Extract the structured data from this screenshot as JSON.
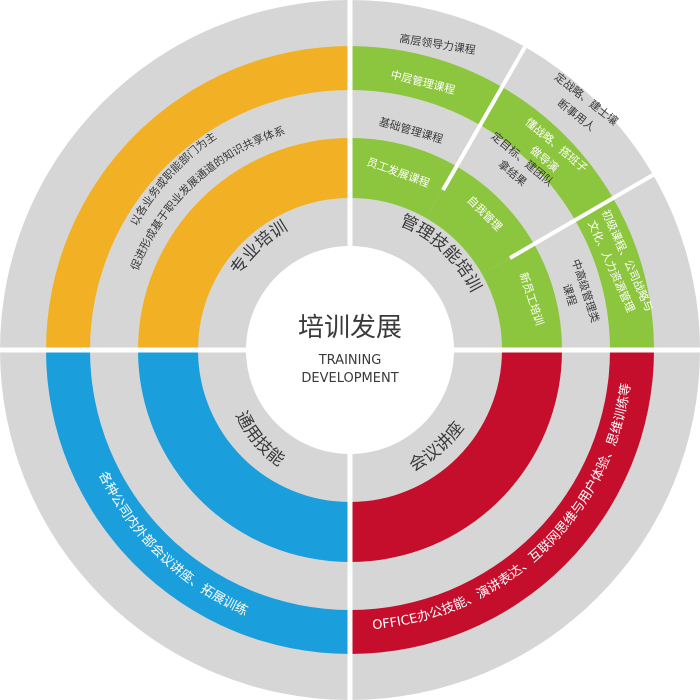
{
  "center": {
    "title": "培训发展",
    "subtitle_line1": "TRAINING",
    "subtitle_line2": "DEVELOPMENT"
  },
  "colors": {
    "orange": "#F2B125",
    "green": "#8CC63E",
    "red": "#C40E2C",
    "blue": "#1A9EDC",
    "gray": "#D6D6D6",
    "text_dark": "#3A3A3A"
  },
  "quadrants": {
    "professional": {
      "name": "专业培训",
      "outer_text": "以各业务或职能部门为主",
      "inner_text": "促进形成基于职业发展通道的知识共享体系"
    },
    "management": {
      "name": "管理技能培训",
      "levels": {
        "senior_course": "高层领导力课程",
        "middle_course": "中层管理课程",
        "basic_course": "基础管理课程",
        "staff_course": "员工发展课程",
        "self_mgmt": "自我管理",
        "new_staff": "新员工培训"
      },
      "outer_notes": {
        "strategy_line1": "定战略、建士壤",
        "strategy_line2": "断事用人",
        "team_line1": "懂战略、搭班子",
        "team_line2": "做导演",
        "goal_line1": "定目标、建团队",
        "goal_line2": "拿结果",
        "culture_line1": "初级课程、公司战略与",
        "culture_line2": "文化、人力资源管理",
        "mid_senior_line1": "中高级管理类",
        "mid_senior_line2": "课程"
      }
    },
    "general": {
      "name": "通用技能",
      "outer_text": "各种公司内外部会议讲座、拓展训练"
    },
    "meeting": {
      "name": "会议讲座",
      "outer_text": "OFFICE办公技能、演讲表达、互联网思维与用户体验、思维训练等"
    }
  }
}
